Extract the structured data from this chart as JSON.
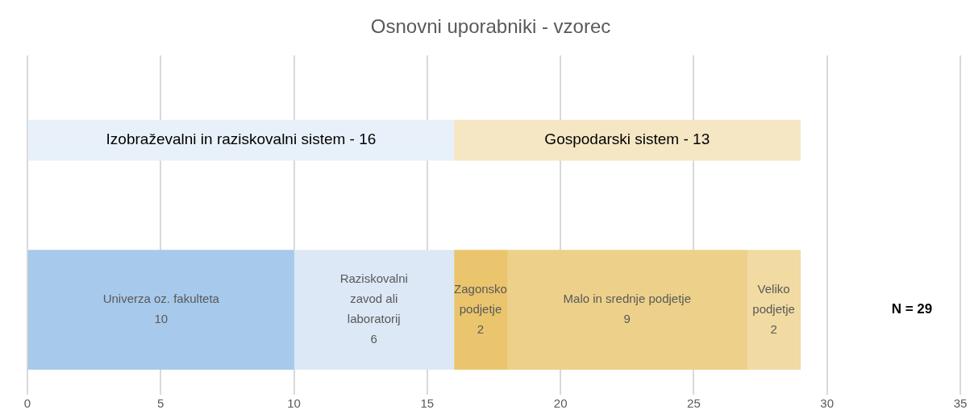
{
  "chart_data": {
    "type": "bar",
    "orientation": "horizontal",
    "stacked": true,
    "title": "Osnovni uporabniki - vzorec",
    "categories": [
      null,
      null
    ],
    "series": [
      {
        "name": "Izobraževalni in raziskovalni sistem -",
        "color": "#e8f1fa",
        "values": [
          16,
          null
        ],
        "value_labels": [
          "16",
          null
        ]
      },
      {
        "name": "Gospodarski sistem -",
        "color": "#f6e7c4",
        "values": [
          13,
          null
        ],
        "value_labels": [
          "13",
          null
        ]
      },
      {
        "name": "Univerza oz. fakulteta",
        "color": "#a7c9eb",
        "values": [
          null,
          10
        ],
        "value_labels": [
          null,
          "10"
        ]
      },
      {
        "name": "Raziskovalni zavod ali laboratorij",
        "color": "#dce8f6",
        "values": [
          null,
          6
        ],
        "value_labels": [
          null,
          "6"
        ]
      },
      {
        "name": "Zagonsko podjetje",
        "color": "#eac56e",
        "values": [
          null,
          2
        ],
        "value_labels": [
          null,
          "2"
        ]
      },
      {
        "name": "Malo in srednje podjetje",
        "color": "#edd18a",
        "values": [
          null,
          9
        ],
        "value_labels": [
          null,
          "9"
        ]
      },
      {
        "name": "Veliko podjetje",
        "color": "#f1dba2",
        "values": [
          null,
          2
        ],
        "value_labels": [
          null,
          "2"
        ]
      }
    ],
    "xlim": [
      0,
      35
    ],
    "xticks": [
      0,
      5,
      10,
      15,
      20,
      25,
      30,
      35
    ],
    "grid": "x",
    "tick_labels": "x",
    "legend": false,
    "annotations": [
      "N = 29"
    ]
  }
}
